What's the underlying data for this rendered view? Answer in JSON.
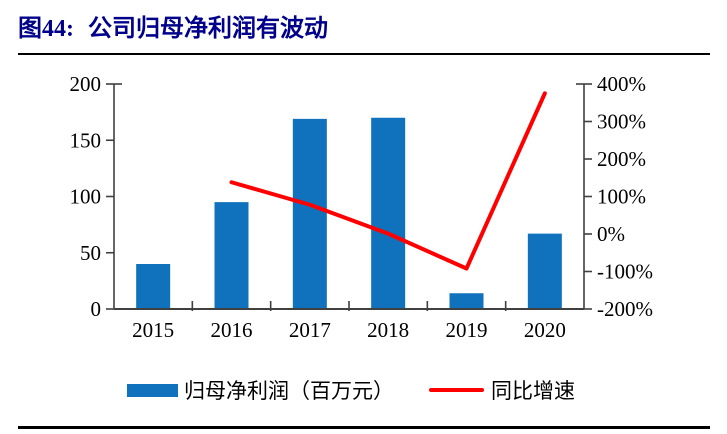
{
  "figure": {
    "label": "图44:",
    "title": "公司归母净利润有波动"
  },
  "legend": {
    "bar_label": "归母净利润（百万元）",
    "line_label": "同比增速"
  },
  "colors": {
    "bar": "#1072BC",
    "line": "#FF0000",
    "title": "#00008B",
    "axis": "#404040",
    "text": "#000000"
  },
  "chart_data": {
    "type": "bar+line combo",
    "categories": [
      "2015",
      "2016",
      "2017",
      "2018",
      "2019",
      "2020"
    ],
    "series": [
      {
        "name": "归母净利润（百万元）",
        "type": "bar",
        "axis": "left",
        "values": [
          40,
          95,
          169,
          170,
          14,
          67
        ]
      },
      {
        "name": "同比增速",
        "type": "line",
        "axis": "right",
        "unit": "%",
        "values": [
          null,
          138,
          78,
          1,
          -92,
          375
        ]
      }
    ],
    "left_axis": {
      "min": 0,
      "max": 200,
      "ticks": [
        0,
        50,
        100,
        150,
        200
      ],
      "suffix": ""
    },
    "right_axis": {
      "min": -200,
      "max": 400,
      "ticks": [
        -200,
        -100,
        0,
        100,
        200,
        300,
        400
      ],
      "suffix": "%"
    },
    "grid": false,
    "legend_position": "bottom",
    "title": "公司归母净利润有波动"
  }
}
